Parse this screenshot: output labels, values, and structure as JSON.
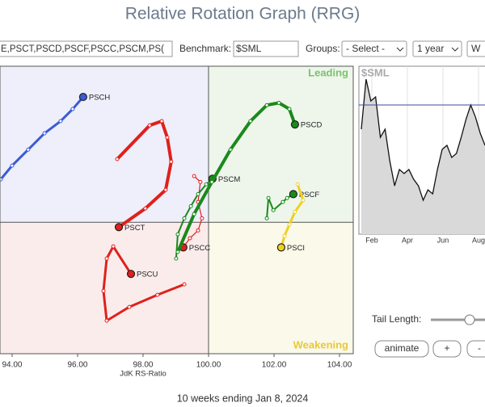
{
  "title": "Relative Rotation Graph (RRG)",
  "toolbar": {
    "symbols": "E,PSCT,PSCD,PSCF,PSCC,PSCM,PS(",
    "benchmark_label": "Benchmark:",
    "benchmark": "$SML",
    "groups_label": "Groups:",
    "groups": "- Select -",
    "period": "1 year",
    "frequency": "W"
  },
  "chart_data": {
    "type": "rrg",
    "xlabel": "JdK RS-Ratio",
    "xlim": [
      93.63,
      104.42
    ],
    "ylim": [
      95.98,
      104.77
    ],
    "xticks": [
      {
        "value": 94,
        "label": "94.00"
      },
      {
        "value": 96,
        "label": "96.00"
      },
      {
        "value": 98,
        "label": "98.00"
      },
      {
        "value": 100,
        "label": "100.00"
      },
      {
        "value": 102,
        "label": "102.00"
      },
      {
        "value": 104,
        "label": "104.00"
      }
    ],
    "center": [
      100,
      100
    ],
    "grid": false,
    "quadrants": {
      "leading": "Leading",
      "weakening": "Weakening"
    },
    "series": [
      {
        "name": "PSCH",
        "color": "#3b5bd6",
        "width": 3,
        "x": [
          93.65,
          94.0,
          94.49,
          94.99,
          95.48,
          95.85,
          96.17
        ],
        "y": [
          101.31,
          101.73,
          102.22,
          102.72,
          103.09,
          103.46,
          103.83
        ]
      },
      {
        "name": "PSCT",
        "color": "#e0201b",
        "width": 4,
        "x": [
          97.21,
          98.2,
          98.57,
          98.74,
          98.86,
          98.69,
          98.07,
          97.26
        ],
        "y": [
          101.93,
          102.96,
          103.09,
          102.59,
          101.85,
          100.99,
          100.42,
          99.85
        ]
      },
      {
        "name": "PSCU",
        "color": "#e0201b",
        "width": 3,
        "x": [
          99.26,
          98.44,
          97.58,
          96.89,
          96.79,
          96.89,
          97.09,
          97.63
        ],
        "y": [
          98.1,
          97.78,
          97.41,
          96.99,
          97.9,
          98.89,
          99.26,
          98.42
        ]
      },
      {
        "name": "PSCC",
        "color": "#e0201b",
        "width": 1.2,
        "x": [
          99.56,
          99.75,
          99.68,
          99.8,
          99.68,
          99.43,
          99.23
        ],
        "y": [
          101.41,
          101.23,
          100.62,
          100.12,
          99.75,
          99.51,
          99.23
        ]
      },
      {
        "name": "PSCM",
        "color": "#1a8a1a",
        "width": 2,
        "x": [
          99.01,
          99.06,
          99.26,
          99.46,
          99.68,
          99.93,
          100.12
        ],
        "y": [
          98.89,
          99.63,
          100.12,
          100.49,
          100.86,
          101.16,
          101.33
        ]
      },
      {
        "name": "PSCD",
        "color": "#1a8a1a",
        "width": 4,
        "x": [
          99.06,
          99.56,
          100.1,
          100.67,
          101.28,
          101.78,
          102.15,
          102.47,
          102.64
        ],
        "y": [
          99.09,
          100.25,
          101.23,
          102.22,
          103.09,
          103.58,
          103.65,
          103.46,
          102.99
        ]
      },
      {
        "name": "PSCF",
        "color": "#1a8a1a",
        "width": 2,
        "x": [
          101.78,
          101.83,
          101.98,
          102.27,
          102.4,
          102.59
        ],
        "y": [
          100.12,
          100.74,
          100.37,
          100.62,
          100.74,
          100.86
        ]
      },
      {
        "name": "PSCI",
        "color": "#f0d020",
        "width": 3,
        "x": [
          102.72,
          102.89,
          102.64,
          102.47,
          102.32,
          102.22
        ],
        "y": [
          101.16,
          100.67,
          100.32,
          99.93,
          99.58,
          99.23
        ]
      }
    ]
  },
  "benchmark_chart": {
    "type": "area",
    "name": "$SML",
    "categories": [
      "Feb",
      "Apr",
      "Jun",
      "Aug"
    ],
    "values": [
      62.5,
      92.3,
      79.3,
      81.7,
      57.7,
      62.5,
      43.3,
      28.8,
      38.5,
      36.1,
      38.5,
      32.7,
      28.8,
      20.2,
      26.4,
      24.0,
      38.5,
      50.5,
      52.9,
      45.7,
      48.1,
      57.7,
      68.3,
      76.9,
      69.7,
      60.1,
      52.9
    ],
    "reference": 76.9,
    "ylim": [
      0,
      100
    ]
  },
  "controls": {
    "tail_label": "Tail Length:",
    "animate": "animate",
    "plus": "+",
    "minus": "-"
  },
  "footer": "10 weeks ending Jan 8, 2024"
}
